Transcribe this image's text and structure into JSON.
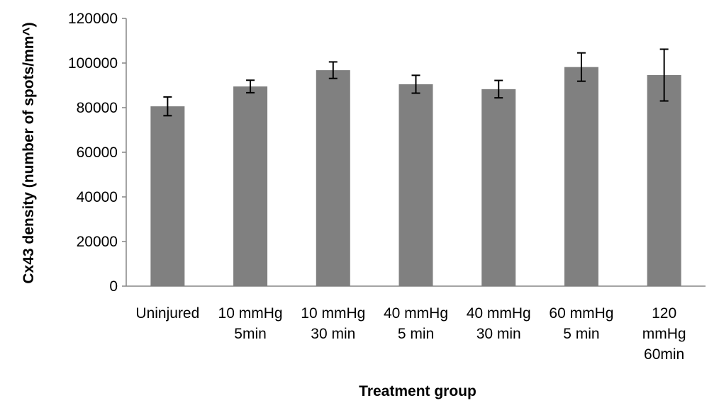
{
  "chart_data": {
    "type": "bar",
    "title": "",
    "xlabel": "Treatment group",
    "ylabel": "Cx43 density (number of spots/mm^)",
    "ylim": [
      0,
      120000
    ],
    "yticks": [
      0,
      20000,
      40000,
      60000,
      80000,
      100000,
      120000
    ],
    "grid": false,
    "categories": [
      [
        "Uninjured"
      ],
      [
        "10 mmHg",
        "5min"
      ],
      [
        "10 mmHg",
        "30 min"
      ],
      [
        "40 mmHg",
        "5 min"
      ],
      [
        "40 mmHg",
        "30 min"
      ],
      [
        "60 mmHg",
        "5 min"
      ],
      [
        "120",
        "mmHg",
        "60min"
      ]
    ],
    "values": [
      80600,
      89500,
      96800,
      90500,
      88300,
      98200,
      94600
    ],
    "errors": [
      4200,
      2800,
      3700,
      4000,
      3900,
      6350,
      11600
    ],
    "bar_color": "#808080",
    "axis_color": "#868686"
  }
}
